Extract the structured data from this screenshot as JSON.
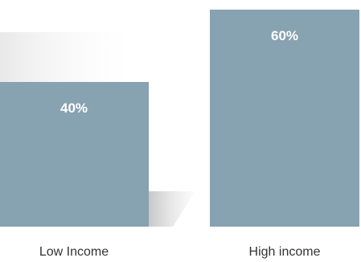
{
  "chart_data": {
    "type": "bar",
    "categories": [
      "Low Income",
      "High income"
    ],
    "values": [
      40,
      60
    ],
    "data_labels": [
      "40%",
      "60%"
    ],
    "title": "",
    "xlabel": "",
    "ylabel": "",
    "ylim": [
      0,
      62
    ],
    "grid": false,
    "legend": "none",
    "colors": {
      "bar": "#87a2b0",
      "data_label": "#ffffff",
      "category_label": "#333333",
      "shadow": "#c9c9c9"
    }
  }
}
